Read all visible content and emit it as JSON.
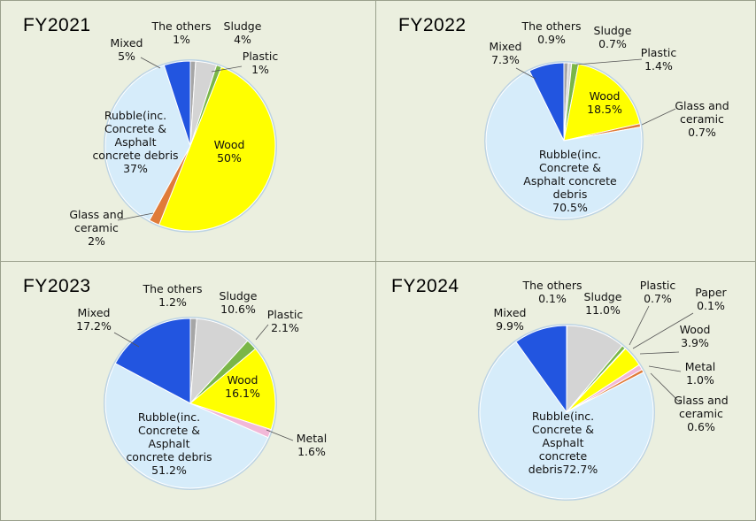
{
  "chart_data": [
    {
      "type": "pie",
      "title": "FY2021",
      "slices": [
        {
          "name": "The others",
          "value": 1,
          "value_label": "1%",
          "color": "#a6a6a6"
        },
        {
          "name": "Sludge",
          "value": 4,
          "value_label": "4%",
          "color": "#d4d4d4"
        },
        {
          "name": "Plastic",
          "value": 1,
          "value_label": "1%",
          "color": "#7ab648"
        },
        {
          "name": "Wood",
          "value": 50,
          "value_label": "50%",
          "color": "#ffff00"
        },
        {
          "name": "Glass and ceramic",
          "value": 2,
          "value_label": "2%",
          "color": "#e07b39"
        },
        {
          "name": "Rubble(inc. Concrete & Asphalt concrete debris",
          "value": 37,
          "value_label": "37%",
          "color": "#d6ecfa"
        },
        {
          "name": "Mixed",
          "value": 5,
          "value_label": "5%",
          "color": "#2255e0"
        }
      ]
    },
    {
      "type": "pie",
      "title": "FY2022",
      "slices": [
        {
          "name": "The others",
          "value": 0.9,
          "value_label": "0.9%",
          "color": "#a6a6a6"
        },
        {
          "name": "Sludge",
          "value": 0.7,
          "value_label": "0.7%",
          "color": "#d4d4d4"
        },
        {
          "name": "Plastic",
          "value": 1.4,
          "value_label": "1.4%",
          "color": "#7ab648"
        },
        {
          "name": "Wood",
          "value": 18.5,
          "value_label": "18.5%",
          "color": "#ffff00"
        },
        {
          "name": "Glass and ceramic",
          "value": 0.7,
          "value_label": "0.7%",
          "color": "#e07b39"
        },
        {
          "name": "Rubble(inc. Concrete & Asphalt concrete debris",
          "value": 70.5,
          "value_label": "70.5%",
          "color": "#d6ecfa"
        },
        {
          "name": "Mixed",
          "value": 7.3,
          "value_label": "7.3%",
          "color": "#2255e0"
        }
      ]
    },
    {
      "type": "pie",
      "title": "FY2023",
      "slices": [
        {
          "name": "The others",
          "value": 1.2,
          "value_label": "1.2%",
          "color": "#a6a6a6"
        },
        {
          "name": "Sludge",
          "value": 10.6,
          "value_label": "10.6%",
          "color": "#d4d4d4"
        },
        {
          "name": "Plastic",
          "value": 2.1,
          "value_label": "2.1%",
          "color": "#7ab648"
        },
        {
          "name": "Wood",
          "value": 16.1,
          "value_label": "16.1%",
          "color": "#ffff00"
        },
        {
          "name": "Metal",
          "value": 1.6,
          "value_label": "1.6%",
          "color": "#f2b8d8"
        },
        {
          "name": "Rubble(inc. Concrete & Asphalt concrete debris",
          "value": 51.2,
          "value_label": "51.2%",
          "color": "#d6ecfa"
        },
        {
          "name": "Mixed",
          "value": 17.2,
          "value_label": "17.2%",
          "color": "#2255e0"
        }
      ]
    },
    {
      "type": "pie",
      "title": "FY2024",
      "slices": [
        {
          "name": "The others",
          "value": 0.1,
          "value_label": "0.1%",
          "color": "#a6a6a6"
        },
        {
          "name": "Sludge",
          "value": 11.0,
          "value_label": "11.0%",
          "color": "#d4d4d4"
        },
        {
          "name": "Plastic",
          "value": 0.7,
          "value_label": "0.7%",
          "color": "#7ab648"
        },
        {
          "name": "Paper",
          "value": 0.1,
          "value_label": "0.1%",
          "color": "#9dc3e6"
        },
        {
          "name": "Wood",
          "value": 3.9,
          "value_label": "3.9%",
          "color": "#ffff00"
        },
        {
          "name": "Metal",
          "value": 1.0,
          "value_label": "1.0%",
          "color": "#f2b8d8"
        },
        {
          "name": "Glass and ceramic",
          "value": 0.6,
          "value_label": "0.6%",
          "color": "#e07b39"
        },
        {
          "name": "Rubble(inc. Concrete & Asphalt concrete debris",
          "value": 72.7,
          "value_label": "72.7%",
          "color": "#d6ecfa"
        },
        {
          "name": "Mixed",
          "value": 9.9,
          "value_label": "9.9%",
          "color": "#2255e0"
        }
      ]
    }
  ]
}
